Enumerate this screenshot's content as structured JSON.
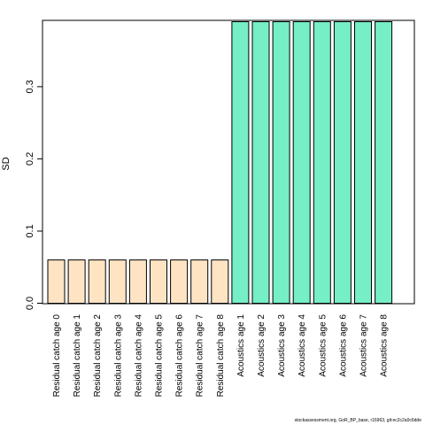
{
  "chart_data": {
    "type": "bar",
    "ylabel": "SD",
    "ylim": [
      0,
      0.39
    ],
    "yticks": [
      0.0,
      0.1,
      0.2,
      0.3
    ],
    "ytick_labels": [
      "0.0",
      "0.1",
      "0.2",
      "0.3"
    ],
    "grid": false,
    "legend": "none",
    "categories": [
      "Residual catch age 0",
      "Residual catch age 1",
      "Residual catch age 2",
      "Residual catch age 3",
      "Residual catch age 4",
      "Residual catch age 5",
      "Residual catch age 6",
      "Residual catch age 7",
      "Residual catch age 8",
      "Acoustics age 1",
      "Acoustics age 2",
      "Acoustics age 3",
      "Acoustics age 4",
      "Acoustics age 5",
      "Acoustics age 6",
      "Acoustics age 7",
      "Acoustics age 8"
    ],
    "values": [
      0.06,
      0.06,
      0.06,
      0.06,
      0.06,
      0.06,
      0.06,
      0.06,
      0.06,
      0.39,
      0.39,
      0.39,
      0.39,
      0.39,
      0.39,
      0.39,
      0.39
    ],
    "groups": [
      {
        "name": "Residual catch",
        "color": "#FFE4C4",
        "count": 9
      },
      {
        "name": "Acoustics",
        "color": "#76EEC6",
        "count": 8
      }
    ]
  },
  "footer": "stockassessment.org, GoR_BP_base, r16963, git:ec2c2a0c6dde"
}
